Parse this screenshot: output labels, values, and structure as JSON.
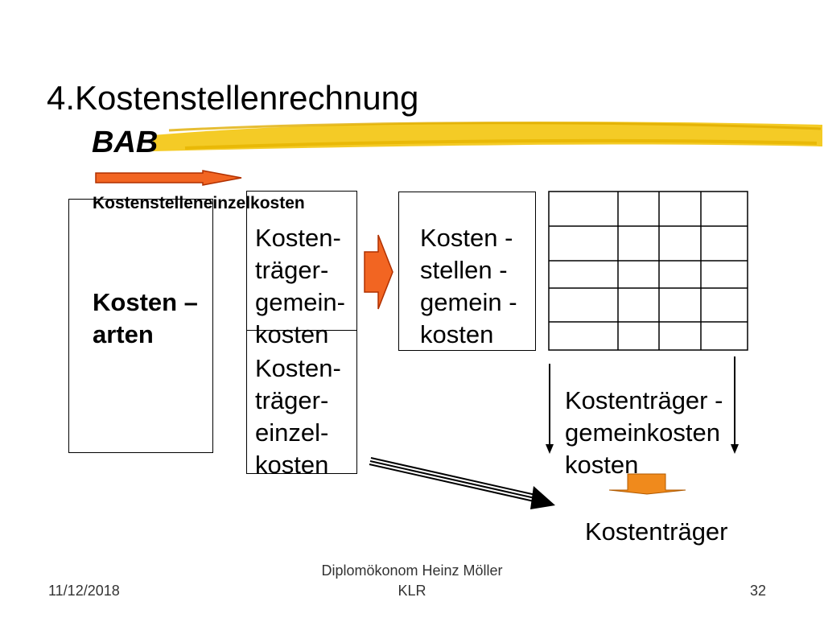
{
  "slide": {
    "title": "4.Kostenstellenrechnung",
    "subtitle": "BAB"
  },
  "diagram": {
    "label_einzelkosten": "Kostenstelleneinzelkosten",
    "kostenarten": [
      "Kosten –",
      "arten"
    ],
    "gemeinkosten": [
      "Kosten-",
      "träger-",
      "gemein-",
      "kosten"
    ],
    "einzelkosten": [
      "Kosten-",
      "träger-",
      "einzel-",
      "kosten"
    ],
    "stellengemein": [
      "Kosten -",
      "stellen -",
      "gemein -",
      "kosten"
    ],
    "traeger_gemeinkosten": [
      "Kostenträger -",
      "gemeinkosten",
      "kosten"
    ],
    "kostentraeger": "Kostenträger",
    "grid": {
      "rows": 5,
      "cols": 4
    }
  },
  "footer": {
    "date": "11/12/2018",
    "author": "Diplomökonom Heinz Möller",
    "course": "KLR",
    "page": "32"
  },
  "colors": {
    "accent_orange": "#f26522",
    "arrow_orange": "#f08a1c",
    "highlight_yellow": "#f2c200"
  }
}
